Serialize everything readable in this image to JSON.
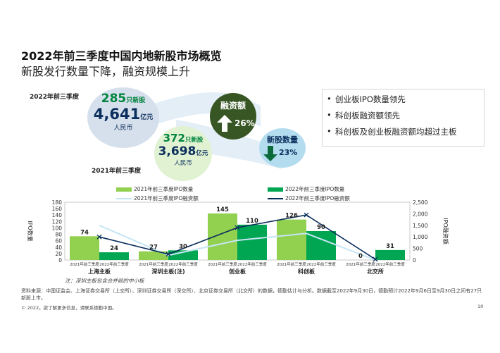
{
  "header": {
    "title": "2022年前三季度中国内地新股市场概览",
    "subtitle": "新股发行数量下降，融资规模上升"
  },
  "summary": {
    "period_2022": "2022年前三季度",
    "period_2021": "2021年前三季度",
    "ipo_2022_count": "285",
    "ipo_2022_count_unit": "只新股",
    "ipo_2022_amount": "4,641",
    "ipo_2022_amount_unit": "亿元",
    "ipo_2022_currency": "人民币",
    "ipo_2021_count": "372",
    "ipo_2021_count_unit": "只新股",
    "ipo_2021_amount": "3,698",
    "ipo_2021_amount_unit": "亿元",
    "ipo_2021_currency": "人民币",
    "funds_label": "融资额",
    "funds_change": "26%",
    "funds_direction": "up",
    "count_label": "新股数量",
    "count_change": "23%",
    "count_direction": "down"
  },
  "highlights": [
    "创业板IPO数量领先",
    "科创板融资额领先",
    "科创板及创业板融资额均超过主板"
  ],
  "chart_data": {
    "type": "bar",
    "categories": [
      "上海主板",
      "深圳主板(注)",
      "创业板",
      "科创板",
      "北交所"
    ],
    "sub_labels": [
      "2021年前三季度",
      "2022年前三季度"
    ],
    "series": [
      {
        "name": "2021年前三季度IPO数量",
        "kind": "bar",
        "axis": "left",
        "color": "#92d050",
        "values": [
          74,
          27,
          145,
          126,
          0
        ]
      },
      {
        "name": "2022年前三季度IPO数量",
        "kind": "bar",
        "axis": "left",
        "color": "#00a651",
        "values": [
          24,
          30,
          110,
          90,
          31
        ]
      },
      {
        "name": "2021年前三季度IPO融资额",
        "kind": "line",
        "axis": "right",
        "color": "#c5e6f5",
        "values": [
          1500,
          200,
          850,
          1150,
          0
        ]
      },
      {
        "name": "2022年前三季度IPO融资额",
        "kind": "line",
        "axis": "right",
        "color": "#0b2f5c",
        "values": [
          1000,
          250,
          1400,
          1950,
          30
        ]
      }
    ],
    "bar_labels_2021": [
      "74",
      "27",
      "145",
      "126",
      "0"
    ],
    "bar_labels_2022": [
      "24",
      "30",
      "110",
      "90",
      "31"
    ],
    "ylabel": "IPO数量",
    "y2label": "IPO融资额",
    "ylim": [
      0,
      180
    ],
    "y2lim": [
      0,
      2500
    ],
    "yticks": [
      0,
      20,
      40,
      60,
      80,
      100,
      120,
      140,
      160,
      180
    ],
    "y2ticks": [
      "0",
      "500",
      "1,000",
      "1,500",
      "2,000",
      "2,500"
    ],
    "legend_position": "top"
  },
  "note": "注：深圳主板包含合并前的中小板",
  "source": "资料来源：中国证监会、上海证券交易所（上交所）、深圳证券交易所（深交所）、北京证券交易所（北交所）的数据，德勤估计与分析。数据截至2022年9月30日，德勤预计2022年9月6日至9月30日之间有27只新股上市。",
  "footer": "© 2022。欲了解更多信息，请联系德勤中国。",
  "page_number": "10",
  "colors": {
    "bar_2021": "#92d050",
    "bar_2022": "#00a651",
    "line_2021": "#c5e6f5",
    "line_2022": "#0b2f5c",
    "funds_bubble": "#375623",
    "count_bubble": "#b4dcef"
  }
}
